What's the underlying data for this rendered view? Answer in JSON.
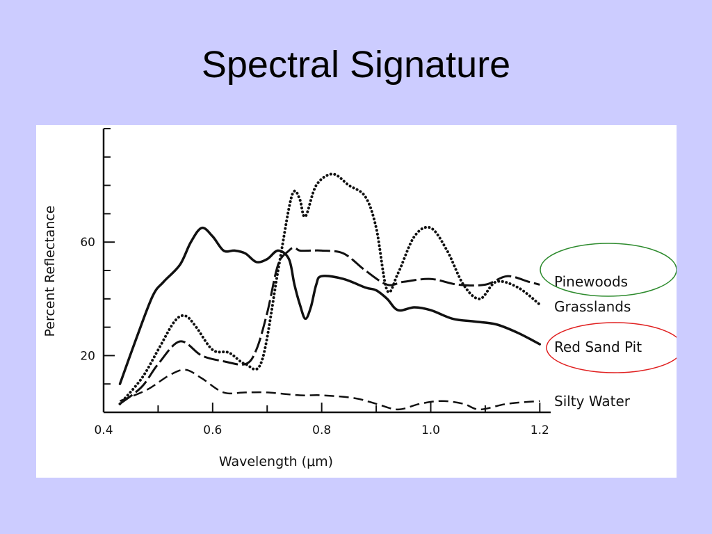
{
  "slide": {
    "title": "Spectral Signature"
  },
  "colors": {
    "background": "#ccccff",
    "panel": "#ffffff",
    "ink": "#111111",
    "highlight_pinewoods": "#2e8b2e",
    "highlight_red_sand_pit": "#e02020"
  },
  "chart_data": {
    "type": "line",
    "title": "",
    "xlabel": "Wavelength (μm)",
    "ylabel": "Percent Reflectance",
    "xlim": [
      0.4,
      1.22
    ],
    "ylim": [
      0,
      100
    ],
    "x_ticks": [
      0.4,
      0.6,
      0.8,
      1.0,
      1.2
    ],
    "x_tick_labels": [
      "0.4",
      "0.6",
      "0.8",
      "1.0",
      "1.2"
    ],
    "y_ticks": [
      20,
      60
    ],
    "y_tick_labels": [
      "20",
      "60"
    ],
    "grid": false,
    "legend": "inline-right",
    "highlighted_series": [
      "Pinewoods",
      "Red Sand Pit"
    ],
    "series": [
      {
        "name": "Pinewoods",
        "style": "dash-dot",
        "x": [
          0.43,
          0.47,
          0.5,
          0.54,
          0.58,
          0.62,
          0.66,
          0.68,
          0.7,
          0.72,
          0.74,
          0.75,
          0.76,
          0.78,
          0.8,
          0.84,
          0.88,
          0.92,
          0.95,
          1.0,
          1.05,
          1.1,
          1.14,
          1.18,
          1.2
        ],
        "y": [
          3,
          9,
          17,
          25,
          20,
          18,
          17,
          22,
          35,
          52,
          57,
          58,
          57,
          57,
          57,
          56,
          50,
          45,
          46,
          47,
          45,
          45,
          48,
          46,
          45
        ]
      },
      {
        "name": "Grasslands",
        "style": "dotted",
        "x": [
          0.43,
          0.47,
          0.5,
          0.53,
          0.55,
          0.57,
          0.6,
          0.63,
          0.66,
          0.69,
          0.72,
          0.74,
          0.75,
          0.76,
          0.77,
          0.79,
          0.82,
          0.85,
          0.88,
          0.9,
          0.92,
          0.94,
          0.97,
          1.0,
          1.03,
          1.06,
          1.09,
          1.12,
          1.16,
          1.2
        ],
        "y": [
          3,
          12,
          22,
          32,
          34,
          30,
          22,
          21,
          17,
          18,
          50,
          72,
          78,
          75,
          69,
          80,
          84,
          80,
          76,
          65,
          43,
          49,
          62,
          65,
          57,
          45,
          40,
          46,
          44,
          38
        ]
      },
      {
        "name": "Red Sand Pit",
        "style": "solid",
        "x": [
          0.43,
          0.46,
          0.49,
          0.51,
          0.54,
          0.56,
          0.58,
          0.6,
          0.62,
          0.64,
          0.66,
          0.68,
          0.7,
          0.72,
          0.74,
          0.75,
          0.76,
          0.77,
          0.78,
          0.79,
          0.8,
          0.84,
          0.88,
          0.9,
          0.92,
          0.94,
          0.97,
          1.0,
          1.04,
          1.08,
          1.12,
          1.16,
          1.2
        ],
        "y": [
          10,
          26,
          41,
          46,
          52,
          60,
          65,
          62,
          57,
          57,
          56,
          53,
          54,
          57,
          54,
          45,
          38,
          33,
          37,
          45,
          48,
          47,
          44,
          43,
          40,
          36,
          37,
          36,
          33,
          32,
          31,
          28,
          24
        ]
      },
      {
        "name": "Silty Water",
        "style": "dashed",
        "x": [
          0.43,
          0.48,
          0.52,
          0.55,
          0.58,
          0.62,
          0.66,
          0.7,
          0.76,
          0.8,
          0.86,
          0.9,
          0.94,
          0.98,
          1.02,
          1.06,
          1.09,
          1.14,
          1.2
        ],
        "y": [
          4,
          8,
          13,
          15,
          12,
          7,
          7,
          7,
          6,
          6,
          5,
          3,
          1,
          3,
          4,
          3,
          1,
          3,
          4
        ]
      }
    ]
  }
}
